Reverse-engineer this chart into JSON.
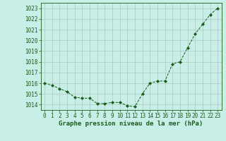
{
  "x": [
    0,
    1,
    2,
    3,
    4,
    5,
    6,
    7,
    8,
    9,
    10,
    11,
    12,
    13,
    14,
    15,
    16,
    17,
    18,
    19,
    20,
    21,
    22,
    23
  ],
  "y": [
    1016.0,
    1015.8,
    1015.5,
    1015.2,
    1014.7,
    1014.6,
    1014.6,
    1014.1,
    1014.1,
    1014.2,
    1014.2,
    1013.9,
    1013.8,
    1015.0,
    1016.0,
    1016.2,
    1016.2,
    1017.8,
    1018.0,
    1019.3,
    1020.6,
    1021.5,
    1022.4,
    1023.0
  ],
  "ylim": [
    1013.5,
    1023.5
  ],
  "yticks": [
    1014,
    1015,
    1016,
    1017,
    1018,
    1019,
    1020,
    1021,
    1022,
    1023
  ],
  "xticks": [
    0,
    1,
    2,
    3,
    4,
    5,
    6,
    7,
    8,
    9,
    10,
    11,
    12,
    13,
    14,
    15,
    16,
    17,
    18,
    19,
    20,
    21,
    22,
    23
  ],
  "line_color": "#1a5c1a",
  "marker_color": "#1a5c1a",
  "bg_color": "#c8eee8",
  "grid_color": "#b0c8c0",
  "xlabel": "Graphe pression niveau de la mer (hPa)",
  "xlabel_color": "#1a5c1a",
  "tick_label_color": "#1a5c1a",
  "tick_fontsize": 5.5,
  "xlabel_fontsize": 6.5
}
